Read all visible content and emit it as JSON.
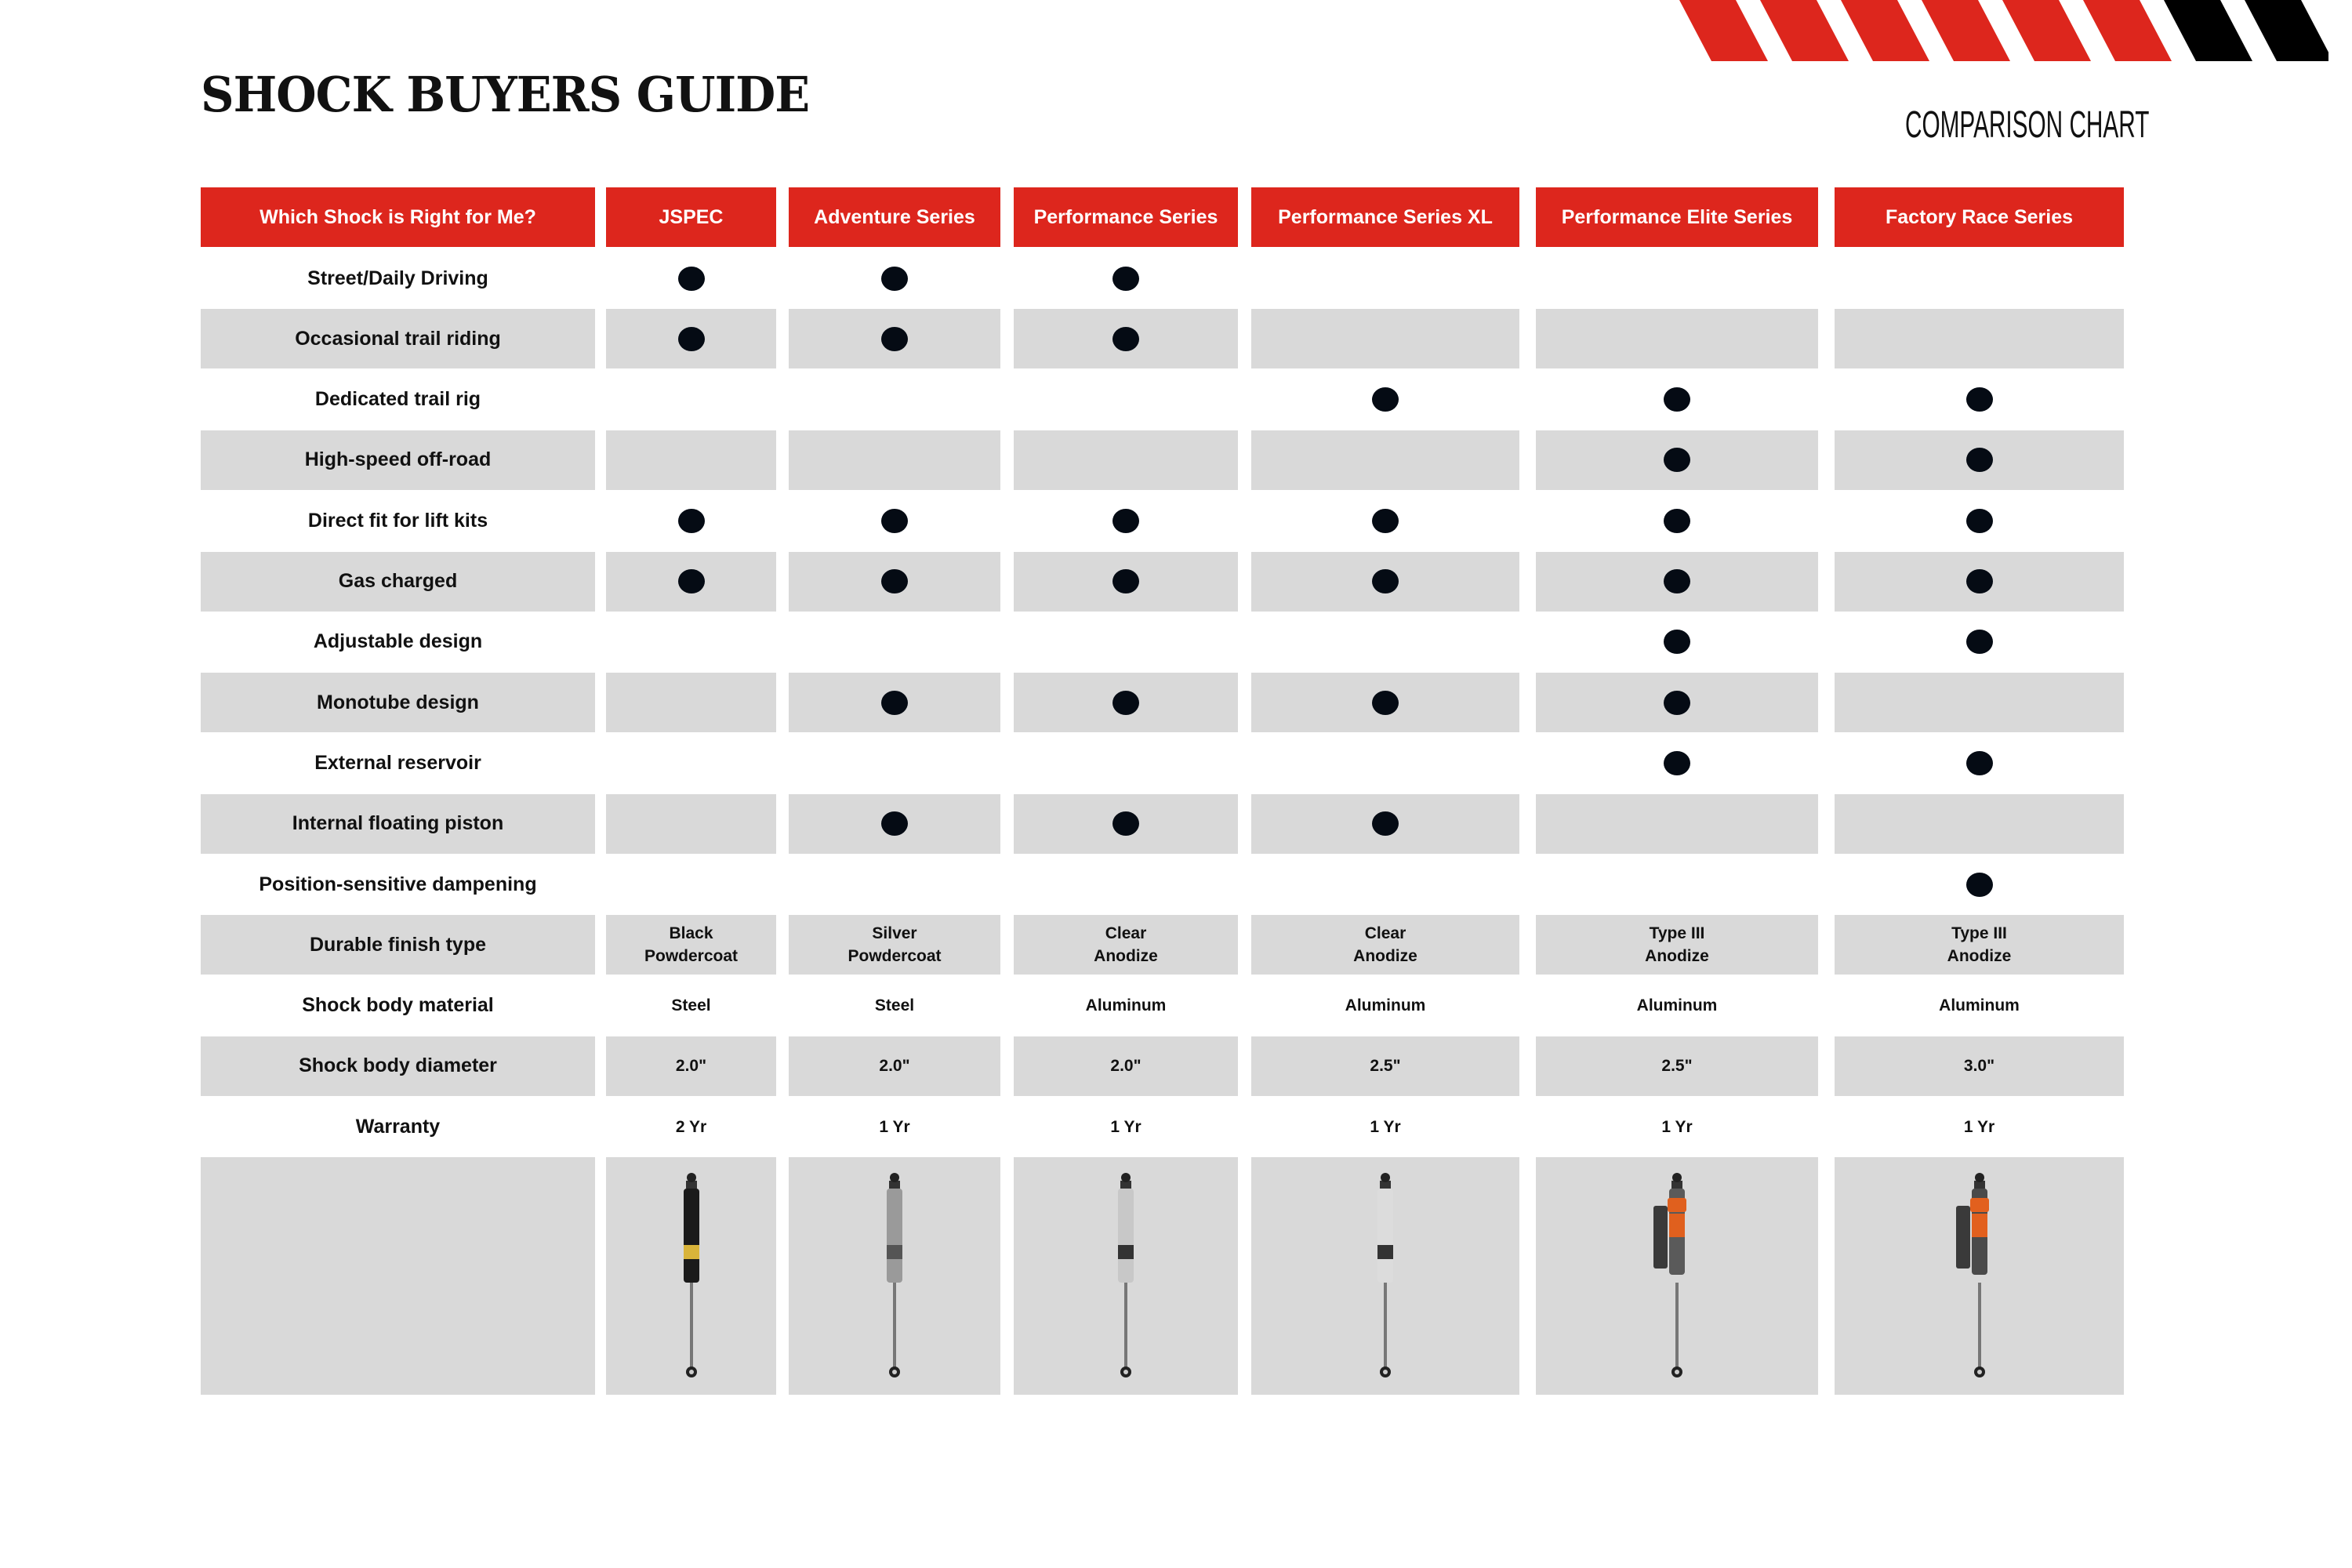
{
  "title": "SHOCK BUYERS GUIDE",
  "subtitle": "COMPARISON CHART",
  "colors": {
    "accent_red": "#dd261d",
    "stripe_black": "#000000",
    "row_gray": "#d9d9d9",
    "dot": "#050b14"
  },
  "table": {
    "corner_header": "Which Shock is Right for Me?",
    "columns": [
      "JSPEC",
      "Adventure Series",
      "Performance Series",
      "Performance Series XL",
      "Performance Elite Series",
      "Factory Race Series"
    ],
    "feature_rows": [
      {
        "label": "Street/Daily Driving",
        "checks": [
          true,
          true,
          true,
          false,
          false,
          false
        ]
      },
      {
        "label": "Occasional trail riding",
        "checks": [
          true,
          true,
          true,
          false,
          false,
          false
        ]
      },
      {
        "label": "Dedicated trail rig",
        "checks": [
          false,
          false,
          false,
          true,
          true,
          true
        ]
      },
      {
        "label": "High-speed off-road",
        "checks": [
          false,
          false,
          false,
          false,
          true,
          true
        ]
      },
      {
        "label": "Direct fit for lift kits",
        "checks": [
          true,
          true,
          true,
          true,
          true,
          true
        ]
      },
      {
        "label": "Gas charged",
        "checks": [
          true,
          true,
          true,
          true,
          true,
          true
        ]
      },
      {
        "label": "Adjustable design",
        "checks": [
          false,
          false,
          false,
          false,
          true,
          true
        ]
      },
      {
        "label": "Monotube design",
        "checks": [
          false,
          true,
          true,
          true,
          true,
          false
        ]
      },
      {
        "label": "External reservoir",
        "checks": [
          false,
          false,
          false,
          false,
          true,
          true
        ]
      },
      {
        "label": "Internal floating piston",
        "checks": [
          false,
          true,
          true,
          true,
          false,
          false
        ]
      },
      {
        "label": "Position-sensitive dampening",
        "checks": [
          false,
          false,
          false,
          false,
          false,
          true
        ]
      }
    ],
    "value_rows": [
      {
        "label": "Durable finish type",
        "values": [
          "Black\nPowdercoat",
          "Silver\nPowdercoat",
          "Clear\nAnodize",
          "Clear\nAnodize",
          "Type III\nAnodize",
          "Type III\nAnodize"
        ]
      },
      {
        "label": "Shock body material",
        "values": [
          "Steel",
          "Steel",
          "Aluminum",
          "Aluminum",
          "Aluminum",
          "Aluminum"
        ]
      },
      {
        "label": "Shock body diameter",
        "values": [
          "2.0\"",
          "2.0\"",
          "2.0\"",
          "2.5\"",
          "2.5\"",
          "3.0\""
        ]
      },
      {
        "label": "Warranty",
        "values": [
          "2 Yr",
          "1 Yr",
          "1 Yr",
          "1 Yr",
          "1 Yr",
          "1 Yr"
        ]
      }
    ],
    "images": [
      {
        "icon": "shock-black-icon",
        "body": "#1a1a1a",
        "accent": "#d9b43a",
        "reservoir": false
      },
      {
        "icon": "shock-silver-icon",
        "body": "#9a9a9a",
        "accent": "#555555",
        "reservoir": false
      },
      {
        "icon": "shock-clear-icon",
        "body": "#c8c8c8",
        "accent": "#333333",
        "reservoir": false
      },
      {
        "icon": "shock-clear-xl-icon",
        "body": "#dcdcdc",
        "accent": "#333333",
        "reservoir": false
      },
      {
        "icon": "shock-elite-icon",
        "body": "#5a5a5a",
        "accent": "#e0601e",
        "reservoir": true
      },
      {
        "icon": "shock-race-icon",
        "body": "#4a4a4a",
        "accent": "#e2601e",
        "reservoir": true
      }
    ]
  }
}
